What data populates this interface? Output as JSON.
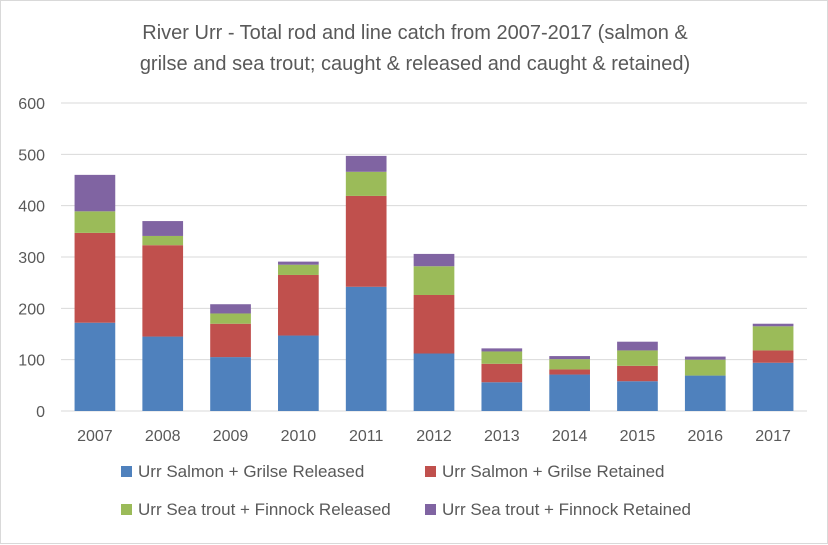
{
  "chart_data": {
    "type": "bar",
    "stacked": true,
    "title_lines": [
      "River Urr - Total rod and line catch from 2007-2017 (salmon &",
      "grilse and sea trout; caught & released and caught & retained)"
    ],
    "categories": [
      "2007",
      "2008",
      "2009",
      "2010",
      "2011",
      "2012",
      "2013",
      "2014",
      "2015",
      "2016",
      "2017"
    ],
    "ylim": [
      0,
      600
    ],
    "yticks": [
      0,
      100,
      200,
      300,
      400,
      500,
      600
    ],
    "grid": true,
    "legend_position": "bottom",
    "series": [
      {
        "name": "Urr Salmon + Grilse Released",
        "color": "#4f81bd",
        "values": [
          172,
          145,
          105,
          147,
          242,
          112,
          56,
          71,
          58,
          69,
          94
        ]
      },
      {
        "name": "Urr Salmon + Grilse Retained",
        "color": "#c0504d",
        "values": [
          175,
          178,
          65,
          118,
          177,
          114,
          36,
          10,
          30,
          0,
          24
        ]
      },
      {
        "name": "Urr Sea trout + Finnock Released",
        "color": "#9bbb59",
        "values": [
          42,
          18,
          20,
          20,
          47,
          56,
          24,
          20,
          30,
          31,
          47
        ]
      },
      {
        "name": "Urr Sea trout + Finnock Retained",
        "color": "#8064a2",
        "values": [
          71,
          29,
          18,
          6,
          31,
          24,
          6,
          6,
          17,
          6,
          5
        ]
      }
    ]
  }
}
